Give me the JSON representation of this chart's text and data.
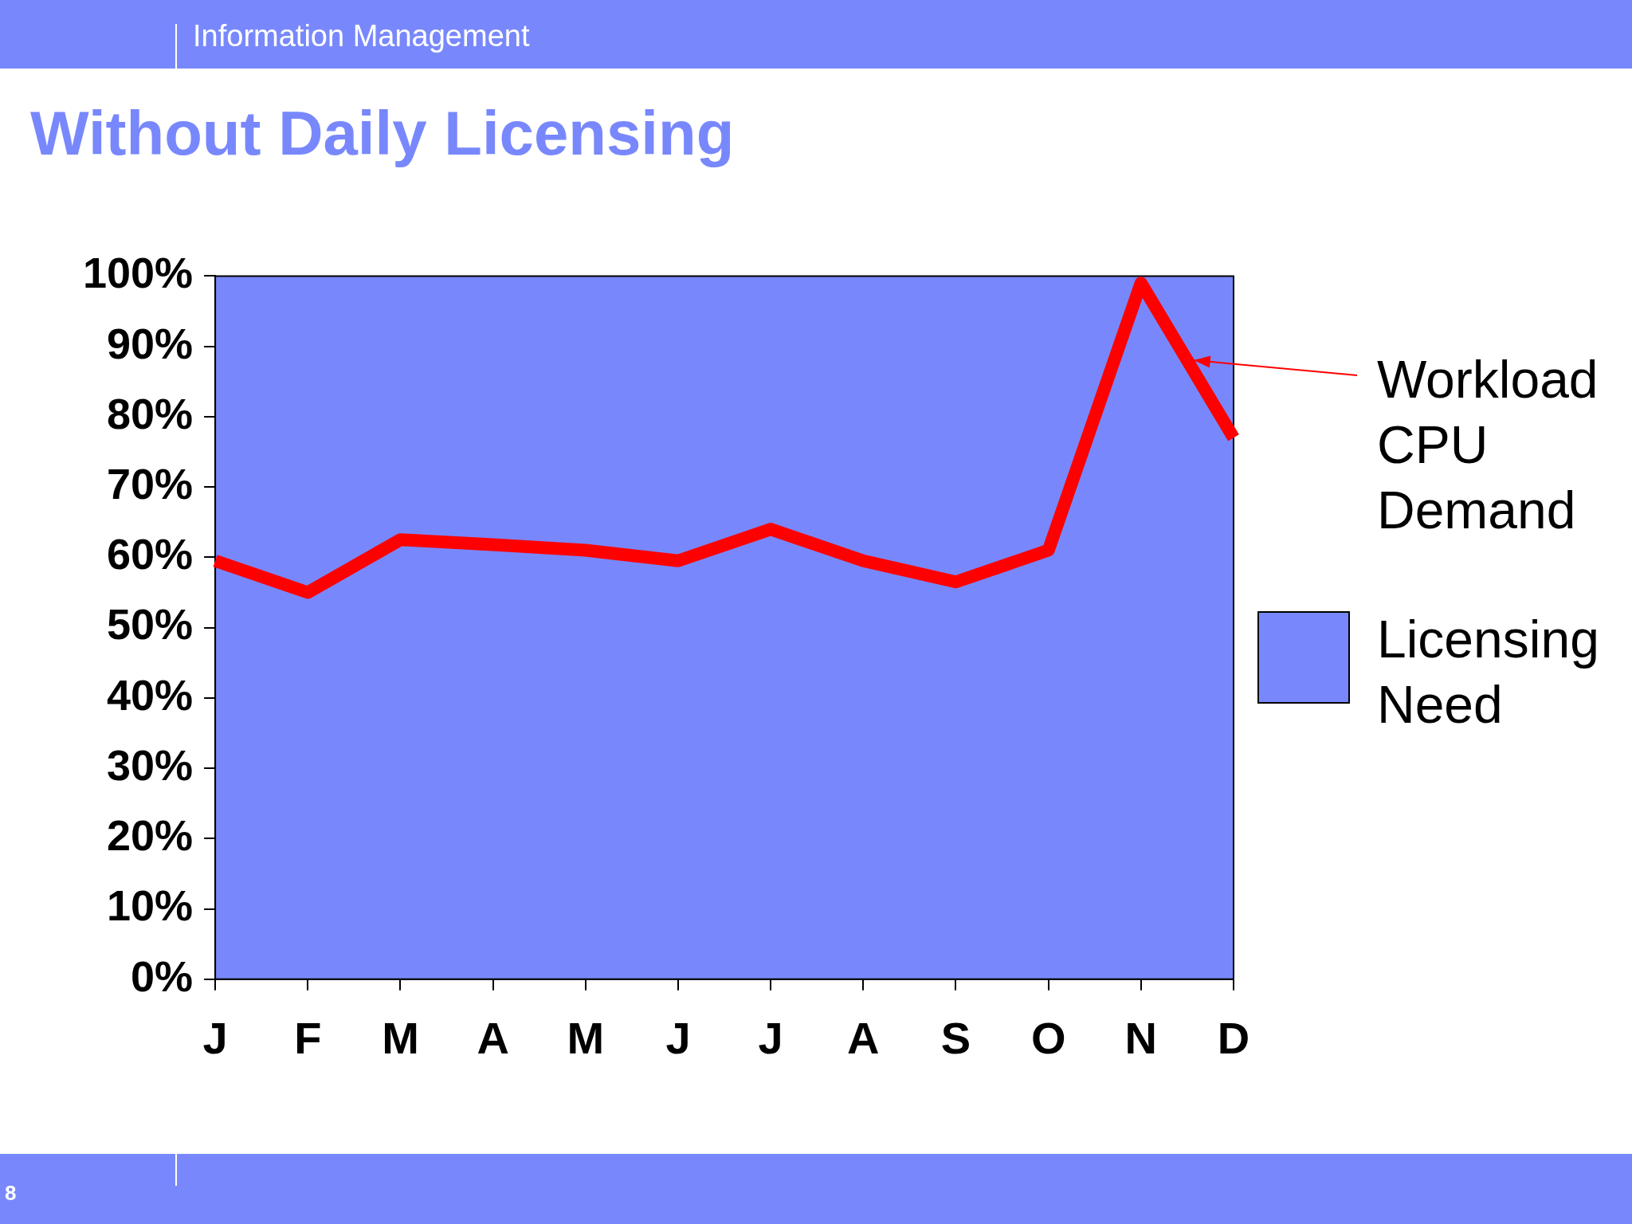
{
  "chart_data": {
    "type": "line",
    "title": "Without Daily Licensing",
    "subtitle": "Information Management",
    "categories": [
      "J",
      "F",
      "M",
      "A",
      "M",
      "J",
      "J",
      "A",
      "S",
      "O",
      "N",
      "D"
    ],
    "series": [
      {
        "name": "Workload CPU Demand",
        "color": "#ff0000",
        "values": [
          59.5,
          55,
          62.5,
          61.8,
          61,
          59.5,
          64,
          59.5,
          56.5,
          61,
          99,
          77
        ]
      }
    ],
    "bands": [
      {
        "axis": "y",
        "from": 0,
        "to": 100,
        "label": "Licensing Need",
        "color": "#7888fc"
      }
    ],
    "ylim": [
      0,
      100
    ],
    "yticks": [
      {
        "value": 0,
        "label": "0%"
      },
      {
        "value": 10,
        "label": "10%"
      },
      {
        "value": 20,
        "label": "20%"
      },
      {
        "value": 30,
        "label": "30%"
      },
      {
        "value": 40,
        "label": "40%"
      },
      {
        "value": 50,
        "label": "50%"
      },
      {
        "value": 60,
        "label": "60%"
      },
      {
        "value": 70,
        "label": "70%"
      },
      {
        "value": 80,
        "label": "80%"
      },
      {
        "value": 90,
        "label": "90%"
      },
      {
        "value": 100,
        "label": "100%"
      }
    ],
    "legend": "right",
    "annotations": [
      "8"
    ]
  }
}
